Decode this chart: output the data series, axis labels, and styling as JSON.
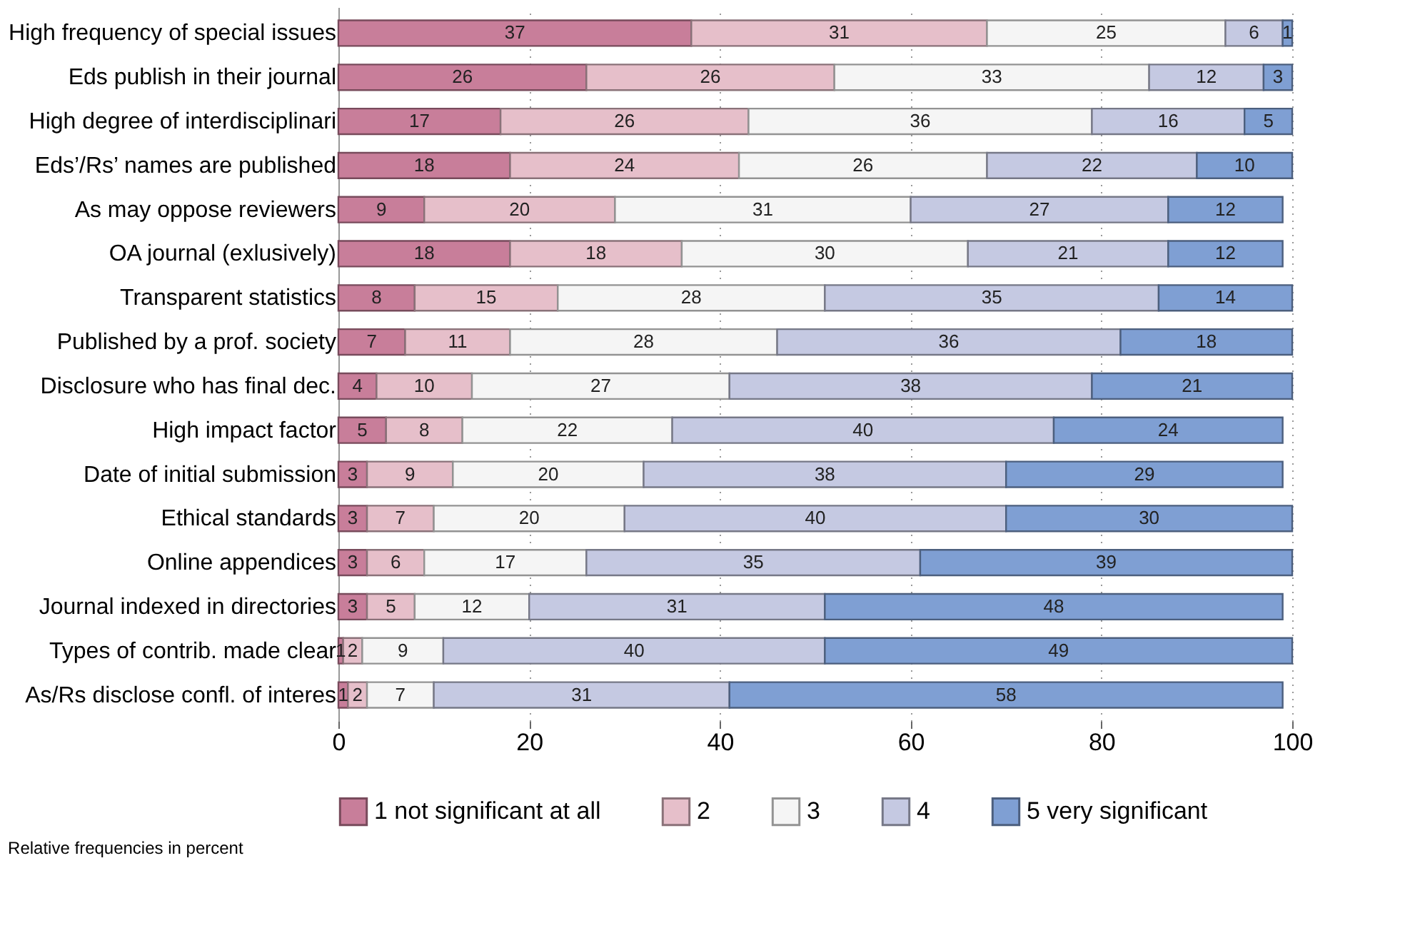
{
  "chart_data": {
    "type": "bar",
    "orientation": "horizontal",
    "stacked": true,
    "data_labels": true,
    "categories": [
      "High frequency of special issues",
      "Eds publish in their journal",
      "High degree of interdisciplinari",
      "Eds’/Rs’ names are published",
      "As may oppose reviewers",
      "OA journal (exlusively)",
      "Transparent statistics",
      "Published by a prof. society",
      "Disclosure who has final dec.",
      "High impact factor",
      "Date of initial submission",
      "Ethical standards",
      "Online appendices",
      "Journal indexed in directories",
      "Types of contrib. made clear",
      "As/Rs disclose confl. of interes"
    ],
    "series": [
      {
        "name": "1 not significant at all",
        "color": "#c87e9a",
        "values": [
          37,
          26,
          17,
          18,
          9,
          18,
          8,
          7,
          4,
          5,
          3,
          3,
          3,
          3,
          0.5,
          1
        ],
        "value_labels": [
          "37",
          "26",
          "17",
          "18",
          "9",
          "18",
          "8",
          "7",
          "4",
          "5",
          "3",
          "3",
          "3",
          "3",
          "1",
          "1"
        ]
      },
      {
        "name": "2",
        "color": "#e6bfca",
        "values": [
          31,
          26,
          26,
          24,
          20,
          18,
          15,
          11,
          10,
          8,
          9,
          7,
          6,
          5,
          2,
          2
        ]
      },
      {
        "name": "3",
        "color": "#f5f5f5",
        "values": [
          25,
          33,
          36,
          26,
          31,
          30,
          28,
          28,
          27,
          22,
          20,
          20,
          17,
          12,
          8.5,
          7
        ],
        "value_labels": [
          "25",
          "33",
          "36",
          "26",
          "31",
          "30",
          "28",
          "28",
          "27",
          "22",
          "20",
          "20",
          "17",
          "12",
          "9",
          "7"
        ]
      },
      {
        "name": "4",
        "color": "#c5c9e2",
        "values": [
          6,
          12,
          16,
          22,
          27,
          21,
          35,
          36,
          38,
          40,
          38,
          40,
          35,
          31,
          40,
          31
        ]
      },
      {
        "name": "5 very significant",
        "color": "#7f9fd3",
        "values": [
          1,
          3,
          5,
          10,
          12,
          12,
          14,
          18,
          21,
          24,
          29,
          30,
          39,
          48,
          49,
          58
        ]
      }
    ],
    "xlim": [
      0,
      100
    ],
    "xticks": [
      0,
      20,
      40,
      60,
      80,
      100
    ],
    "grid": "x",
    "legend": "bottom",
    "annotations": [
      "Relative frequencies in percent"
    ]
  }
}
